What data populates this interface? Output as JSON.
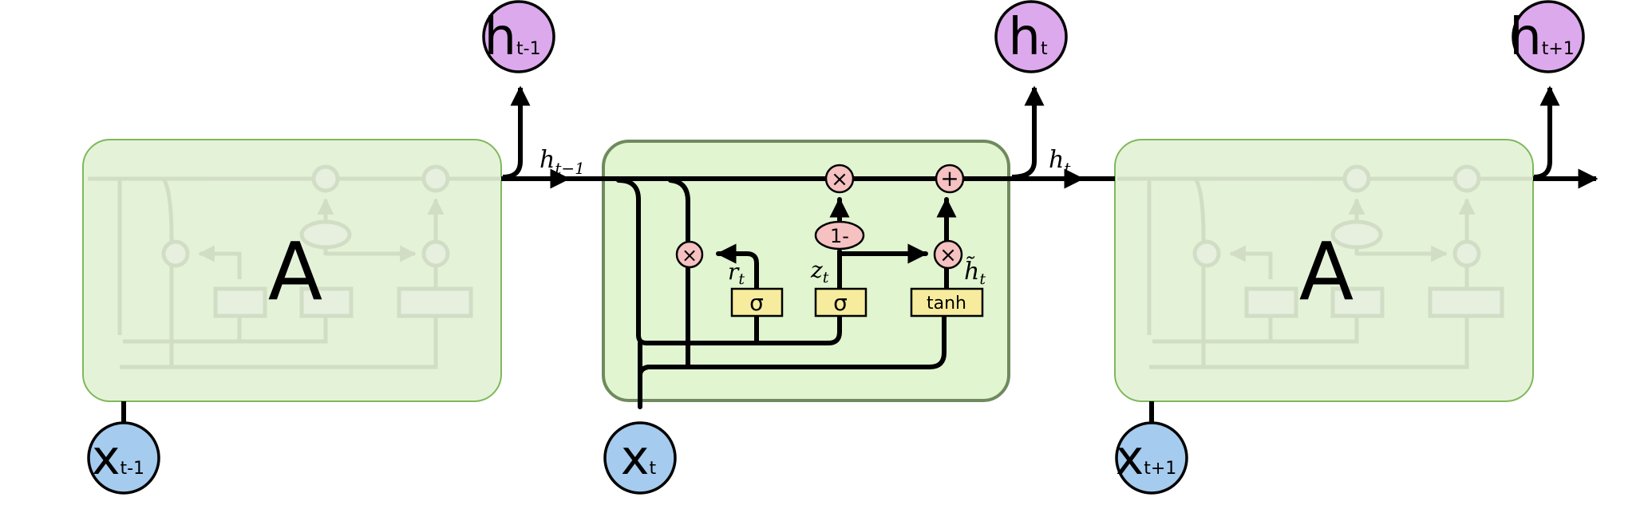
{
  "colors": {
    "cell_fill_active": "#e0f5d0",
    "cell_fill_faded": "#e4f3d8",
    "cell_stroke_active": "#6f8a5c",
    "cell_stroke_faded": "#7fb85a",
    "output_node": "#dca9ec",
    "input_node": "#a5cbee",
    "gate_box": "#f7ec9d",
    "pointwise_op": "#f6c1c1",
    "line": "#000000"
  },
  "cells": [
    {
      "label": "A"
    },
    {
      "label": ""
    },
    {
      "label": "A"
    }
  ],
  "outputs": [
    {
      "main": "h",
      "sub": "t-1"
    },
    {
      "main": "h",
      "sub": "t"
    },
    {
      "main": "h",
      "sub": "t+1"
    }
  ],
  "inputs": [
    {
      "main": "x",
      "sub": "t-1"
    },
    {
      "main": "x",
      "sub": "t"
    },
    {
      "main": "x",
      "sub": "t+1"
    }
  ],
  "state_labels": [
    {
      "main": "h",
      "sub": "t−1"
    },
    {
      "main": "h",
      "sub": "t"
    }
  ],
  "gates": {
    "reset_sigma": "σ",
    "update_sigma": "σ",
    "candidate": "tanh",
    "one_minus": "1-",
    "times": "×",
    "plus": "+"
  },
  "gate_labels": {
    "reset": {
      "main": "r",
      "sub": "t"
    },
    "update": {
      "main": "z",
      "sub": "t"
    },
    "candidate": {
      "main": "h̃",
      "sub": "t"
    }
  }
}
